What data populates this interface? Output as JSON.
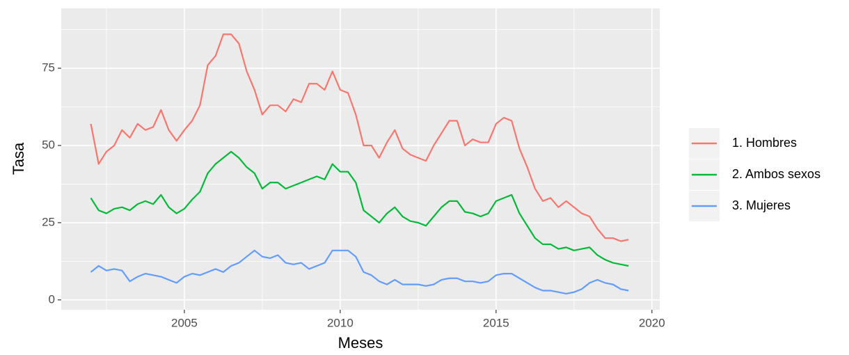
{
  "chart_data": {
    "type": "line",
    "x_label": "Meses",
    "y_label": "Tasa",
    "x": [
      2002,
      2002.25,
      2002.5,
      2002.75,
      2003,
      2003.25,
      2003.5,
      2003.75,
      2004,
      2004.25,
      2004.5,
      2004.75,
      2005,
      2005.25,
      2005.5,
      2005.75,
      2006,
      2006.25,
      2006.5,
      2006.75,
      2007,
      2007.25,
      2007.5,
      2007.75,
      2008,
      2008.25,
      2008.5,
      2008.75,
      2009,
      2009.25,
      2009.5,
      2009.75,
      2010,
      2010.25,
      2010.5,
      2010.75,
      2011,
      2011.25,
      2011.5,
      2011.75,
      2012,
      2012.25,
      2012.5,
      2012.75,
      2013,
      2013.25,
      2013.5,
      2013.75,
      2014,
      2014.25,
      2014.5,
      2014.75,
      2015,
      2015.25,
      2015.5,
      2015.75,
      2016,
      2016.25,
      2016.5,
      2016.75,
      2017,
      2017.25,
      2017.5,
      2017.75,
      2018,
      2018.25,
      2018.5,
      2018.75,
      2019,
      2019.25
    ],
    "series": [
      {
        "name": "1. Hombres",
        "color": "#F8766D",
        "values": [
          57,
          44,
          48,
          50,
          55,
          52.5,
          57,
          55,
          56,
          61.5,
          55,
          51.5,
          55,
          58,
          63,
          76,
          79,
          86,
          86,
          83,
          74,
          68,
          60,
          63,
          63,
          61,
          65,
          64,
          70,
          70,
          68,
          74,
          68,
          67,
          60,
          50,
          50,
          46,
          51,
          55,
          49,
          47,
          46,
          45,
          50,
          54,
          58,
          58,
          50,
          52,
          51,
          51,
          57,
          59,
          58,
          49,
          43,
          36,
          32,
          33,
          30,
          32,
          30,
          28,
          27,
          23,
          20,
          20,
          19,
          19.5
        ]
      },
      {
        "name": "2. Ambos sexos",
        "color": "#00BA38",
        "values": [
          33,
          29,
          28,
          29.5,
          30,
          29,
          31,
          32,
          31,
          34,
          30,
          28,
          29.5,
          32.5,
          35,
          41,
          44,
          46,
          48,
          46,
          43,
          41,
          36,
          38,
          38,
          36,
          37,
          38,
          39,
          40,
          39,
          44,
          41.5,
          41.5,
          38,
          29,
          27,
          25,
          28,
          30,
          27,
          25.5,
          25,
          24,
          27,
          30,
          32,
          32,
          28.5,
          28,
          27,
          28,
          32,
          33,
          34,
          28,
          24,
          20,
          18,
          18,
          16.5,
          17,
          16,
          16.5,
          17,
          14.5,
          13,
          12,
          11.5,
          11
        ]
      },
      {
        "name": "3. Mujeres",
        "color": "#619CFF",
        "values": [
          9,
          11,
          9.5,
          10,
          9.5,
          6,
          7.5,
          8.5,
          8,
          7.5,
          6.5,
          5.5,
          7.5,
          8.5,
          8,
          9,
          10,
          9,
          11,
          12,
          14,
          16,
          14,
          13.5,
          14.5,
          12,
          11.5,
          12,
          10,
          11,
          12,
          16,
          16,
          16,
          14,
          9,
          8,
          6,
          5,
          6.5,
          5,
          5,
          5,
          4.5,
          5,
          6.5,
          7,
          7,
          6,
          6,
          5.5,
          6,
          8,
          8.5,
          8.5,
          7,
          5.5,
          4,
          3,
          3,
          2.5,
          2,
          2.5,
          3.5,
          5.5,
          6.5,
          5.5,
          5,
          3.5,
          3
        ]
      }
    ],
    "xlim": [
      2001.05,
      2020.25
    ],
    "xticks": [
      2005,
      2010,
      2015,
      2020
    ],
    "ylim": [
      -3.2,
      94.4
    ],
    "yticks": [
      0,
      25,
      50,
      75
    ],
    "grid": true,
    "legend": "right"
  }
}
